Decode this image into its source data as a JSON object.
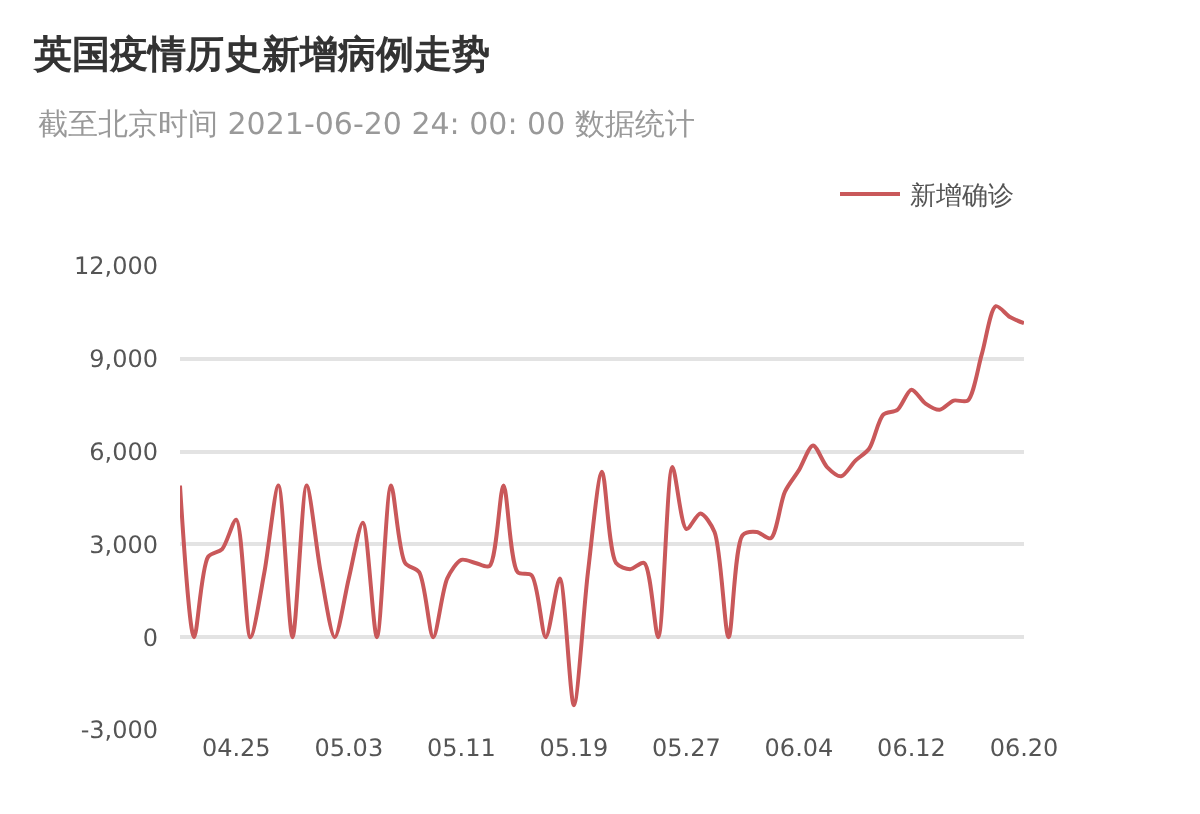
{
  "chart_data": {
    "type": "line",
    "title": "英国疫情历史新增病例走势",
    "subtitle": "截至北京时间 2021-06-20 24: 00: 00 数据统计",
    "x": [
      "2021-04-21",
      "2021-04-22",
      "2021-04-23",
      "2021-04-24",
      "2021-04-25",
      "2021-04-26",
      "2021-04-27",
      "2021-04-28",
      "2021-04-29",
      "2021-04-30",
      "2021-05-01",
      "2021-05-02",
      "2021-05-03",
      "2021-05-04",
      "2021-05-05",
      "2021-05-06",
      "2021-05-07",
      "2021-05-08",
      "2021-05-09",
      "2021-05-10",
      "2021-05-11",
      "2021-05-12",
      "2021-05-13",
      "2021-05-14",
      "2021-05-15",
      "2021-05-16",
      "2021-05-17",
      "2021-05-18",
      "2021-05-19",
      "2021-05-20",
      "2021-05-21",
      "2021-05-22",
      "2021-05-23",
      "2021-05-24",
      "2021-05-25",
      "2021-05-26",
      "2021-05-27",
      "2021-05-28",
      "2021-05-29",
      "2021-05-30",
      "2021-05-31",
      "2021-06-01",
      "2021-06-02",
      "2021-06-03",
      "2021-06-04",
      "2021-06-05",
      "2021-06-06",
      "2021-06-07",
      "2021-06-08",
      "2021-06-09",
      "2021-06-10",
      "2021-06-11",
      "2021-06-12",
      "2021-06-13",
      "2021-06-14",
      "2021-06-15",
      "2021-06-16",
      "2021-06-17",
      "2021-06-18",
      "2021-06-19",
      "2021-06-20"
    ],
    "series": [
      {
        "name": "新增确诊",
        "color": "#c9585a",
        "values": [
          4900,
          0,
          2600,
          2850,
          3800,
          0,
          2100,
          4900,
          0,
          4900,
          2100,
          0,
          1900,
          3700,
          0,
          4900,
          2400,
          2100,
          0,
          1900,
          2500,
          2400,
          2300,
          4900,
          2100,
          2000,
          0,
          1900,
          -2200,
          2100,
          5350,
          2400,
          2200,
          2400,
          0,
          5500,
          3500,
          4000,
          3400,
          0,
          3300,
          3400,
          3200,
          4700,
          5400,
          6200,
          5500,
          5200,
          5700,
          6100,
          7200,
          7350,
          8000,
          7550,
          7350,
          7650,
          7650,
          9150,
          10700,
          10350,
          10150
        ]
      }
    ],
    "xlim": [
      "2021-04-21",
      "2021-06-20"
    ],
    "xticks": [
      {
        "value": "2021-04-25",
        "label": "04.25"
      },
      {
        "value": "2021-05-03",
        "label": "05.03"
      },
      {
        "value": "2021-05-11",
        "label": "05.11"
      },
      {
        "value": "2021-05-19",
        "label": "05.19"
      },
      {
        "value": "2021-05-27",
        "label": "05.27"
      },
      {
        "value": "2021-06-04",
        "label": "06.04"
      },
      {
        "value": "2021-06-12",
        "label": "06.12"
      },
      {
        "value": "2021-06-20",
        "label": "06.20"
      }
    ],
    "ylim": [
      -3000,
      12000
    ],
    "yticks": [
      {
        "value": -3000,
        "label": "-3,000"
      },
      {
        "value": 0,
        "label": "0"
      },
      {
        "value": 3000,
        "label": "3,000"
      },
      {
        "value": 6000,
        "label": "6,000"
      },
      {
        "value": 9000,
        "label": "9,000"
      },
      {
        "value": 12000,
        "label": "12,000"
      }
    ],
    "grid": "y",
    "legend": "top right",
    "marker": "none"
  }
}
